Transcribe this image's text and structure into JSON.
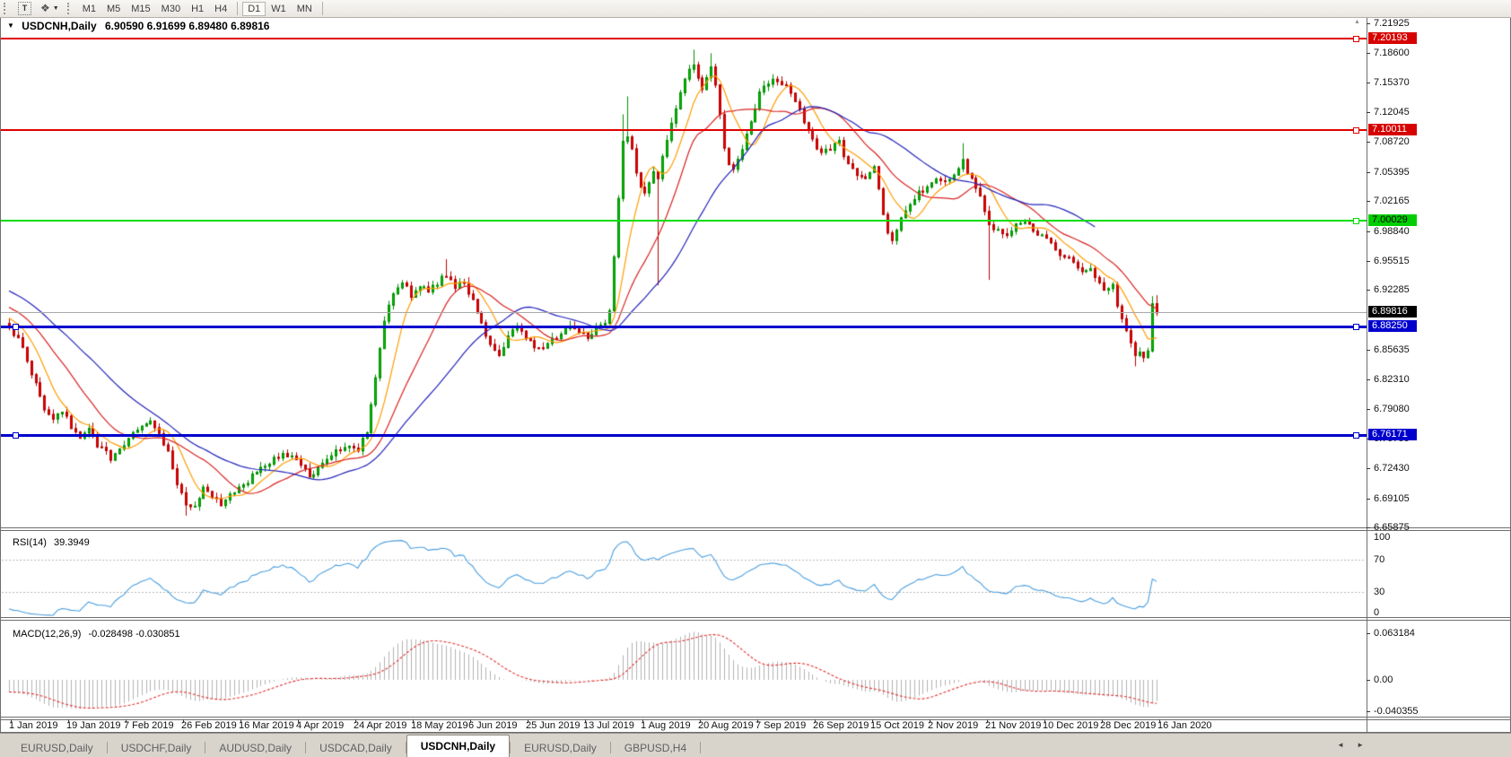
{
  "toolbar": {
    "text_tool_glyph": "T",
    "arrange_glyph": "❖",
    "caret_glyph": "▼",
    "timeframes": [
      {
        "label": "M1",
        "active": false,
        "sep_after": false
      },
      {
        "label": "M5",
        "active": false,
        "sep_after": false
      },
      {
        "label": "M15",
        "active": false,
        "sep_after": false
      },
      {
        "label": "M30",
        "active": false,
        "sep_after": false
      },
      {
        "label": "H1",
        "active": false,
        "sep_after": false
      },
      {
        "label": "H4",
        "active": false,
        "sep_after": true
      },
      {
        "label": "D1",
        "active": true,
        "sep_after": false
      },
      {
        "label": "W1",
        "active": false,
        "sep_after": false
      },
      {
        "label": "MN",
        "active": false,
        "sep_after": true
      }
    ]
  },
  "chart_header": {
    "dropdown_glyph": "▼",
    "symbol": "USDCNH,Daily",
    "ohlc": "6.90590 6.91699 6.89480 6.89816"
  },
  "collapse_glyph": "▲",
  "price_axis": {
    "ticks": [
      "7.21925",
      "7.18600",
      "7.15370",
      "7.12045",
      "7.08720",
      "7.05395",
      "7.02165",
      "6.98840",
      "6.95515",
      "6.92285",
      "6.85635",
      "6.82310",
      "6.79080",
      "6.75755",
      "6.72430",
      "6.69105",
      "6.65875"
    ],
    "badges": [
      {
        "text": "7.20193",
        "bg": "#d60000",
        "fg": "#ffffff"
      },
      {
        "text": "7.10011",
        "bg": "#d60000",
        "fg": "#ffffff"
      },
      {
        "text": "7.00029",
        "bg": "#00ce00",
        "fg": "#000000"
      },
      {
        "text": "6.89816",
        "bg": "#000000",
        "fg": "#ffffff"
      },
      {
        "text": "6.88250",
        "bg": "#0000cd",
        "fg": "#ffffff"
      },
      {
        "text": "6.76171",
        "bg": "#0000cd",
        "fg": "#ffffff"
      }
    ]
  },
  "hlines": [
    {
      "price": 7.20193,
      "color": "#e00000",
      "thickness": 2,
      "left_handle": false
    },
    {
      "price": 7.10011,
      "color": "#e00000",
      "thickness": 2,
      "left_handle": false
    },
    {
      "price": 7.00029,
      "color": "#00dd00",
      "thickness": 2,
      "left_handle": false
    },
    {
      "price": 6.8825,
      "color": "#0000cd",
      "thickness": 3,
      "left_handle": true
    },
    {
      "price": 6.76171,
      "color": "#0000cd",
      "thickness": 3,
      "left_handle": true
    }
  ],
  "current_price_line": {
    "price": 6.89816,
    "color": "#a8a8a8"
  },
  "date_axis": [
    "1 Jan 2019",
    "19 Jan 2019",
    "7 Feb 2019",
    "26 Feb 2019",
    "16 Mar 2019",
    "4 Apr 2019",
    "24 Apr 2019",
    "18 May 2019",
    "6 Jun 2019",
    "25 Jun 2019",
    "13 Jul 2019",
    "1 Aug 2019",
    "20 Aug 2019",
    "7 Sep 2019",
    "26 Sep 2019",
    "15 Oct 2019",
    "2 Nov 2019",
    "21 Nov 2019",
    "10 Dec 2019",
    "28 Dec 2019",
    "16 Jan 2020"
  ],
  "panels": {
    "rsi": {
      "label": "RSI(14)",
      "value": "39.3949",
      "axis": [
        {
          "text": "100",
          "value": 100
        },
        {
          "text": "70",
          "value": 70
        },
        {
          "text": "30",
          "value": 30
        },
        {
          "text": "0",
          "value": 0
        }
      ],
      "dashed_levels": [
        70,
        30
      ],
      "line_color": "#4a9ede"
    },
    "macd": {
      "label": "MACD(12,26,9)",
      "value": "-0.028498 -0.030851",
      "axis": [
        {
          "text": "0.063184",
          "value": 0.063184
        },
        {
          "text": "0.00",
          "value": 0
        },
        {
          "text": "-0.040355",
          "value": -0.040355
        }
      ],
      "histogram_color": "#b2b2b2",
      "signal_color": "#e03030"
    }
  },
  "tabs": [
    {
      "label": "EURUSD,Daily",
      "active": false
    },
    {
      "label": "USDCHF,Daily",
      "active": false
    },
    {
      "label": "AUDUSD,Daily",
      "active": false
    },
    {
      "label": "USDCAD,Daily",
      "active": false
    },
    {
      "label": "USDCNH,Daily",
      "active": true
    },
    {
      "label": "EURUSD,Daily",
      "active": false
    },
    {
      "label": "GBPUSD,H4",
      "active": false
    }
  ],
  "tab_scroll": {
    "left": "◄",
    "right": "►"
  },
  "chart_data": {
    "type": "candlestick",
    "symbol": "USDCNH",
    "period": "Daily",
    "x_start_label": "1 Jan 2019",
    "x_end_label": "16 Jan 2020",
    "price_min": 6.65875,
    "price_max": 7.21925,
    "candle_count": 261,
    "bull_color": "#00be00",
    "bull_border": "#008f00",
    "bear_color": "#e80000",
    "bear_border": "#b80000",
    "close_anchors": [
      [
        0,
        6.878
      ],
      [
        2,
        6.867
      ],
      [
        4,
        6.846
      ],
      [
        6,
        6.818
      ],
      [
        8,
        6.792
      ],
      [
        10,
        6.778
      ],
      [
        12,
        6.79
      ],
      [
        14,
        6.772
      ],
      [
        16,
        6.758
      ],
      [
        18,
        6.768
      ],
      [
        20,
        6.75
      ],
      [
        23,
        6.737
      ],
      [
        26,
        6.752
      ],
      [
        29,
        6.77
      ],
      [
        32,
        6.777
      ],
      [
        34,
        6.766
      ],
      [
        36,
        6.742
      ],
      [
        38,
        6.71
      ],
      [
        40,
        6.686
      ],
      [
        42,
        6.682
      ],
      [
        44,
        6.702
      ],
      [
        46,
        6.692
      ],
      [
        48,
        6.687
      ],
      [
        50,
        6.693
      ],
      [
        53,
        6.706
      ],
      [
        56,
        6.72
      ],
      [
        59,
        6.733
      ],
      [
        62,
        6.741
      ],
      [
        65,
        6.733
      ],
      [
        68,
        6.716
      ],
      [
        71,
        6.728
      ],
      [
        74,
        6.743
      ],
      [
        77,
        6.753
      ],
      [
        79,
        6.747
      ],
      [
        81,
        6.768
      ],
      [
        83,
        6.824
      ],
      [
        85,
        6.89
      ],
      [
        87,
        6.921
      ],
      [
        89,
        6.931
      ],
      [
        91,
        6.918
      ],
      [
        93,
        6.928
      ],
      [
        95,
        6.921
      ],
      [
        97,
        6.929
      ],
      [
        99,
        6.941
      ],
      [
        101,
        6.926
      ],
      [
        103,
        6.931
      ],
      [
        105,
        6.913
      ],
      [
        107,
        6.886
      ],
      [
        109,
        6.862
      ],
      [
        111,
        6.853
      ],
      [
        113,
        6.872
      ],
      [
        115,
        6.881
      ],
      [
        117,
        6.872
      ],
      [
        119,
        6.862
      ],
      [
        121,
        6.856
      ],
      [
        123,
        6.868
      ],
      [
        125,
        6.875
      ],
      [
        127,
        6.882
      ],
      [
        129,
        6.877
      ],
      [
        131,
        6.872
      ],
      [
        133,
        6.88
      ],
      [
        135,
        6.888
      ],
      [
        136,
        6.902
      ],
      [
        137,
        6.962
      ],
      [
        138,
        7.022
      ],
      [
        139,
        7.086
      ],
      [
        140,
        7.092
      ],
      [
        141,
        7.078
      ],
      [
        142,
        7.056
      ],
      [
        143,
        7.04
      ],
      [
        144,
        7.028
      ],
      [
        145,
        7.042
      ],
      [
        146,
        7.058
      ],
      [
        147,
        7.048
      ],
      [
        148,
        7.07
      ],
      [
        149,
        7.088
      ],
      [
        150,
        7.106
      ],
      [
        151,
        7.128
      ],
      [
        152,
        7.145
      ],
      [
        153,
        7.158
      ],
      [
        154,
        7.168
      ],
      [
        155,
        7.172
      ],
      [
        156,
        7.158
      ],
      [
        157,
        7.148
      ],
      [
        158,
        7.162
      ],
      [
        159,
        7.171
      ],
      [
        160,
        7.152
      ],
      [
        161,
        7.118
      ],
      [
        162,
        7.082
      ],
      [
        163,
        7.065
      ],
      [
        164,
        7.058
      ],
      [
        165,
        7.068
      ],
      [
        166,
        7.082
      ],
      [
        167,
        7.095
      ],
      [
        168,
        7.11
      ],
      [
        169,
        7.125
      ],
      [
        170,
        7.14
      ],
      [
        171,
        7.148
      ],
      [
        172,
        7.154
      ],
      [
        174,
        7.158
      ],
      [
        176,
        7.148
      ],
      [
        178,
        7.131
      ],
      [
        180,
        7.112
      ],
      [
        182,
        7.092
      ],
      [
        184,
        7.073
      ],
      [
        186,
        7.082
      ],
      [
        188,
        7.088
      ],
      [
        190,
        7.062
      ],
      [
        192,
        7.05
      ],
      [
        194,
        7.046
      ],
      [
        196,
        7.058
      ],
      [
        197,
        7.035
      ],
      [
        198,
        7.008
      ],
      [
        199,
        6.985
      ],
      [
        200,
        6.978
      ],
      [
        201,
        6.992
      ],
      [
        202,
        7.003
      ],
      [
        204,
        7.018
      ],
      [
        206,
        7.03
      ],
      [
        208,
        7.04
      ],
      [
        210,
        7.048
      ],
      [
        212,
        7.042
      ],
      [
        214,
        7.052
      ],
      [
        216,
        7.068
      ],
      [
        217,
        7.055
      ],
      [
        218,
        7.045
      ],
      [
        220,
        7.028
      ],
      [
        222,
        6.998
      ],
      [
        224,
        6.988
      ],
      [
        226,
        6.986
      ],
      [
        228,
        6.994
      ],
      [
        230,
        6.999
      ],
      [
        232,
        6.991
      ],
      [
        234,
        6.982
      ],
      [
        236,
        6.973
      ],
      [
        238,
        6.963
      ],
      [
        240,
        6.957
      ],
      [
        242,
        6.946
      ],
      [
        244,
        6.948
      ],
      [
        246,
        6.94
      ],
      [
        248,
        6.921
      ],
      [
        250,
        6.928
      ],
      [
        251,
        6.905
      ],
      [
        252,
        6.888
      ],
      [
        253,
        6.877
      ],
      [
        254,
        6.866
      ],
      [
        255,
        6.85
      ],
      [
        256,
        6.852
      ],
      [
        257,
        6.848
      ],
      [
        258,
        6.855
      ],
      [
        259,
        6.908
      ],
      [
        260,
        6.898
      ]
    ],
    "long_wicks": [
      [
        40,
        "low",
        6.672
      ],
      [
        99,
        "high",
        6.957
      ],
      [
        139,
        "high",
        7.118
      ],
      [
        140,
        "high",
        7.138
      ],
      [
        147,
        "low",
        6.928
      ],
      [
        155,
        "high",
        7.19
      ],
      [
        159,
        "high",
        7.186
      ],
      [
        216,
        "high",
        7.086
      ],
      [
        222,
        "low",
        6.934
      ],
      [
        255,
        "low",
        6.838
      ],
      [
        259,
        "high",
        6.916
      ],
      [
        260,
        "high",
        6.917
      ]
    ],
    "moving_averages": [
      {
        "period": 8,
        "color": "#ff9c00",
        "end_index": 260
      },
      {
        "period": 18,
        "color": "#d92222",
        "end_index": 260
      },
      {
        "period": 34,
        "color": "#2323bb",
        "end_index": 246
      }
    ],
    "rsi": {
      "period": 14,
      "last_value": 39.3949
    },
    "macd": {
      "fast": 12,
      "slow": 26,
      "signal": 9,
      "last_macd": -0.028498,
      "last_signal": -0.030851
    },
    "seed": 20190101
  }
}
